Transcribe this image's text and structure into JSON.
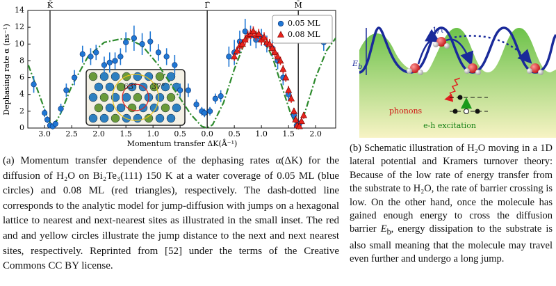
{
  "chart_data": {
    "type": "scatter",
    "ylabel": "Dephasing rate α (ns⁻¹)",
    "xlabel": "Momentum transfer ΔK(Å⁻¹)",
    "xlim": [
      -3.31,
      2.37
    ],
    "ylim": [
      0,
      14
    ],
    "xticks": [
      {
        "value": -3.0,
        "label": "3.0"
      },
      {
        "value": -2.5,
        "label": "2.5"
      },
      {
        "value": -2.0,
        "label": "2.0"
      },
      {
        "value": -1.5,
        "label": "1.5"
      },
      {
        "value": -1.0,
        "label": "1.0"
      },
      {
        "value": -0.5,
        "label": "0.5"
      },
      {
        "value": 0,
        "label": "0.0"
      },
      0.5,
      {
        "value": 1.0,
        "label": "1.0"
      },
      1.5,
      {
        "value": 2.0,
        "label": "2.0"
      }
    ],
    "yticks": [
      0,
      2,
      4,
      6,
      8,
      10,
      12,
      14
    ],
    "annotations": [
      {
        "label": "K̄",
        "x": -2.9
      },
      {
        "label": "Γ̄",
        "x": 0
      },
      {
        "label": "M̄",
        "x": 1.68
      }
    ],
    "inset_labels": [
      "63°",
      "37°"
    ],
    "series": [
      {
        "color": "#2e8b2e",
        "line_style": "dashdot",
        "x": [
          -3.3,
          -3.1,
          -2.95,
          -2.85,
          -2.7,
          -2.5,
          -2.2,
          -1.9,
          -1.6,
          -1.45,
          -1.2,
          -0.9,
          -0.6,
          -0.3,
          -0.1,
          0,
          0.1,
          0.3,
          0.5,
          0.7,
          0.85,
          1.0,
          1.2,
          1.4,
          1.55,
          1.68,
          1.8,
          2.0,
          2.2,
          2.37
        ],
        "values": [
          7.5,
          4.0,
          1.3,
          0.0,
          1.8,
          5.0,
          8.5,
          10.2,
          10.6,
          10.6,
          9.8,
          7.5,
          4.5,
          1.6,
          0.2,
          0,
          0.4,
          3.0,
          7.0,
          10.3,
          11.5,
          11.0,
          8.5,
          4.5,
          1.5,
          0,
          1.8,
          6.0,
          9.2,
          10.7
        ]
      },
      {
        "name": "0.05 ML",
        "color": "#1f77d4",
        "marker": "circle",
        "x": [
          -3.2,
          -3.0,
          -2.95,
          -2.9,
          -2.85,
          -2.8,
          -2.7,
          -2.6,
          -2.45,
          -2.3,
          -2.15,
          -2.05,
          -1.9,
          -1.8,
          -1.7,
          -1.6,
          -1.5,
          -1.35,
          -1.2,
          -1.05,
          -0.9,
          -0.75,
          -0.6,
          -0.5,
          -0.35,
          -0.2,
          -0.1,
          -0.05,
          0.05,
          0.15,
          0.25,
          0.4,
          0.5,
          0.6,
          0.7,
          0.8,
          0.9,
          1.0,
          1.1,
          1.2,
          1.3,
          1.4,
          1.5,
          1.6,
          1.65,
          1.7,
          2.15
        ],
        "values": [
          5.2,
          1.8,
          1.0,
          0.3,
          0.2,
          0.5,
          2.3,
          4.5,
          6.0,
          8.8,
          8.5,
          9.0,
          7.5,
          7.8,
          8.0,
          8.5,
          10.2,
          10.7,
          10.0,
          10.3,
          9.0,
          8.5,
          7.5,
          4.5,
          4.5,
          2.8,
          2.0,
          1.8,
          2.0,
          3.5,
          3.8,
          8.5,
          9.0,
          10.3,
          11.5,
          11.0,
          10.5,
          10.8,
          10.0,
          9.5,
          8.0,
          6.0,
          4.0,
          1.5,
          0.3,
          0.5,
          10.2
        ],
        "errors": [
          1.0,
          0.5,
          0.4,
          0.3,
          0.3,
          0.4,
          0.6,
          0.8,
          0.9,
          1.0,
          1.0,
          0.9,
          1.0,
          1.2,
          1.0,
          1.0,
          1.2,
          1.5,
          1.3,
          1.2,
          1.0,
          1.0,
          1.2,
          0.8,
          0.8,
          0.6,
          0.5,
          0.5,
          0.5,
          0.6,
          0.7,
          1.2,
          1.5,
          1.3,
          1.5,
          1.2,
          1.0,
          1.0,
          1.0,
          1.0,
          1.0,
          0.9,
          0.8,
          0.5,
          0.4,
          0.4,
          1.0
        ]
      },
      {
        "name": "0.08 ML",
        "color": "#e8231c",
        "marker": "triangle",
        "x": [
          0.5,
          0.55,
          0.6,
          0.65,
          0.7,
          0.75,
          0.8,
          0.85,
          0.9,
          0.95,
          1.0,
          1.05,
          1.1,
          1.15,
          1.2,
          1.25,
          1.3,
          1.35,
          1.4,
          1.45,
          1.5,
          1.55,
          1.6,
          1.63,
          1.66,
          1.7,
          1.74,
          1.78
        ],
        "values": [
          8.5,
          9.2,
          9.8,
          10.0,
          10.5,
          11.0,
          11.2,
          11.5,
          11.0,
          11.2,
          10.5,
          10.8,
          10.2,
          10.0,
          9.5,
          9.0,
          8.5,
          8.0,
          7.0,
          6.0,
          4.5,
          3.5,
          2.0,
          1.0,
          0.3,
          0.2,
          0.8,
          1.5
        ],
        "errors": [
          0.5,
          0.5,
          0.6,
          0.6,
          0.6,
          0.6,
          0.6,
          0.6,
          0.6,
          0.6,
          0.6,
          0.6,
          0.6,
          0.6,
          0.6,
          0.6,
          0.5,
          0.5,
          0.5,
          0.5,
          0.5,
          0.5,
          0.4,
          0.4,
          0.3,
          0.3,
          0.3,
          0.4
        ]
      }
    ]
  },
  "schematic": {
    "rate_label": "1/τ",
    "barrier_symbol": "E",
    "barrier_subscript": "b",
    "phonons_label": "phonons",
    "eh_label": "e-h excitation"
  },
  "captions": {
    "a": "(a) Momentum transfer dependence of the dephasing rates α(ΔK) for the diffusion of H₂O on Bi₂Te₃(111) 150 K at a water coverage of 0.05 ML (blue circles) and 0.08 ML (red triangles), respectively. The dash-dotted line corresponds to the analytic model for jump-diffusion with jumps on a hexagonal lattice to nearest and next-nearest sites as illustrated in the small inset. The red and and yellow circles illustrate the jump distance to the next and next nearest sites, respectively. Reprinted from [52] under the terms of the Creative Commons CC BY license.",
    "b": [
      "(b) Schematic illustration of H₂O moving in a 1D lateral potential and Kramers turnover theory: Because of the low rate of energy transfer from the substrate to H₂O, the rate of barrier crossing is low. On the other hand, once the molecule has gained enough energy to cross the diffusion barrier ",
      "E",
      "b",
      ", energy dissipation to the substrate is also small meaning that the molecule may travel even further and undergo a long jump."
    ]
  }
}
